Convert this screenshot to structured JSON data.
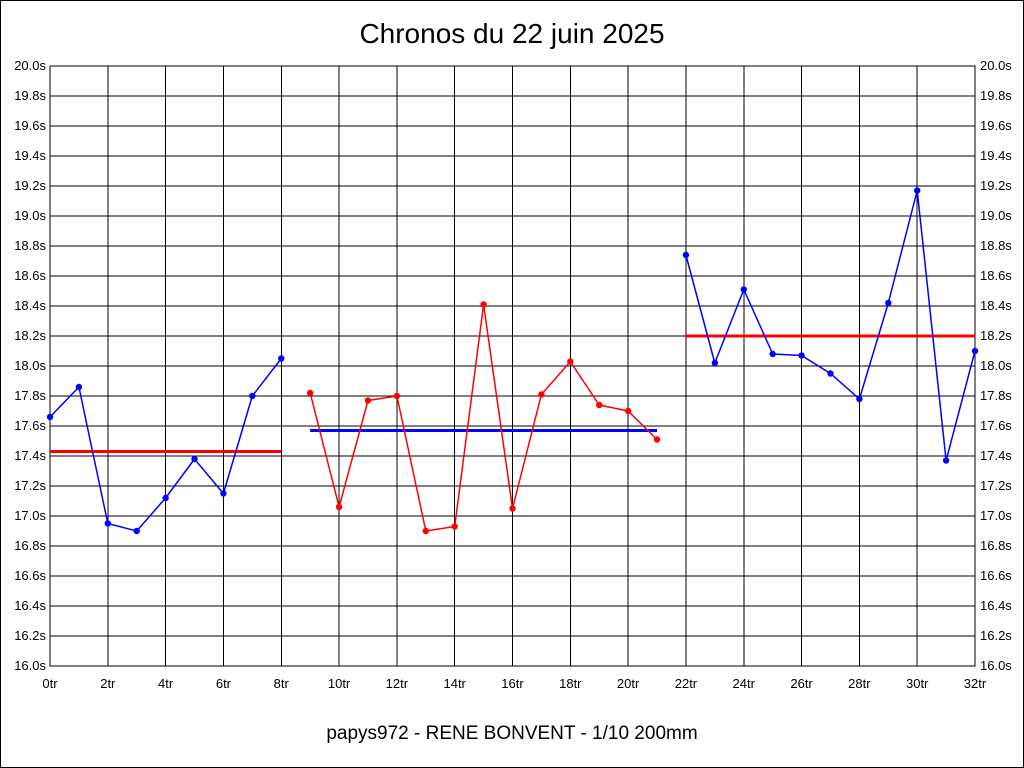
{
  "chart_data": {
    "type": "line",
    "title": "Chronos du 22 juin 2025",
    "footer": "papys972 - RENE BONVENT - 1/10 200mm",
    "xlim": [
      0,
      32
    ],
    "ylim": [
      16.0,
      20.0
    ],
    "x_ticks": [
      0,
      2,
      4,
      6,
      8,
      10,
      12,
      14,
      16,
      18,
      20,
      22,
      24,
      26,
      28,
      30,
      32
    ],
    "x_tick_labels": [
      "0tr",
      "2tr",
      "4tr",
      "6tr",
      "8tr",
      "10tr",
      "12tr",
      "14tr",
      "16tr",
      "18tr",
      "20tr",
      "22tr",
      "24tr",
      "26tr",
      "28tr",
      "30tr",
      "32tr"
    ],
    "y_ticks": [
      16.0,
      16.2,
      16.4,
      16.6,
      16.8,
      17.0,
      17.2,
      17.4,
      17.6,
      17.8,
      18.0,
      18.2,
      18.4,
      18.6,
      18.8,
      19.0,
      19.2,
      19.4,
      19.6,
      19.8,
      20.0
    ],
    "y_tick_labels": [
      "16.0s",
      "16.2s",
      "16.4s",
      "16.6s",
      "16.8s",
      "17.0s",
      "17.2s",
      "17.4s",
      "17.6s",
      "17.8s",
      "18.0s",
      "18.2s",
      "18.4s",
      "18.6s",
      "18.8s",
      "19.0s",
      "19.2s",
      "19.4s",
      "19.6s",
      "19.8s",
      "20.0s"
    ],
    "grid": true,
    "series": [
      {
        "color": "#0000ff",
        "x": [
          0,
          1,
          2,
          3,
          4,
          5,
          6,
          7,
          8
        ],
        "values": [
          17.66,
          17.86,
          16.95,
          16.9,
          17.12,
          17.38,
          17.15,
          17.8,
          18.05
        ]
      },
      {
        "color": "#ff0000",
        "x": [
          9,
          10,
          11,
          12,
          13,
          14,
          15,
          16,
          17,
          18,
          19,
          20,
          21
        ],
        "values": [
          17.82,
          17.06,
          17.77,
          17.8,
          16.9,
          16.93,
          18.41,
          17.05,
          17.81,
          18.03,
          17.74,
          17.7,
          17.51
        ]
      },
      {
        "color": "#0000ff",
        "x": [
          22,
          23,
          24,
          25,
          26,
          27,
          28,
          29,
          30,
          31,
          32
        ],
        "values": [
          18.74,
          18.02,
          18.51,
          18.08,
          18.07,
          17.95,
          17.78,
          18.42,
          19.17,
          17.37,
          18.1
        ]
      }
    ],
    "averages": [
      {
        "color": "#ff0000",
        "x": [
          0,
          8
        ],
        "value": 17.43
      },
      {
        "color": "#0000ff",
        "x": [
          9,
          21
        ],
        "value": 17.57
      },
      {
        "color": "#ff0000",
        "x": [
          22,
          32
        ],
        "value": 18.2
      }
    ]
  }
}
